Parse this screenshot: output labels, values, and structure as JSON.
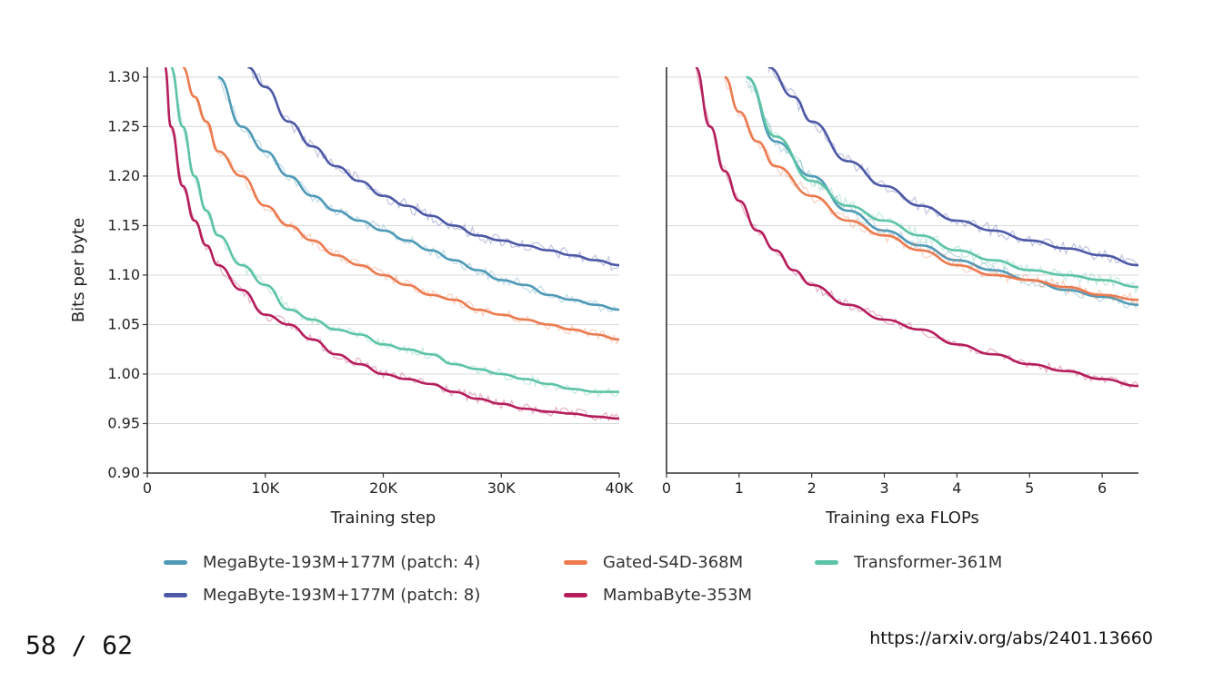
{
  "page": {
    "number": "58 / 62",
    "url": "https://arxiv.org/abs/2401.13660"
  },
  "colors": {
    "megabyte_p4": "#4f9ab7",
    "megabyte_p8": "#4d58a6",
    "gated_s4d": "#ec7a4f",
    "transformer": "#5dc3a6",
    "mambabyte": "#b51d5c"
  },
  "legend": [
    {
      "label": "MegaByte-193M+177M (patch: 4)",
      "color": "#4f9ab7"
    },
    {
      "label": "MegaByte-193M+177M (patch: 8)",
      "color": "#4d58a6"
    },
    {
      "label": "Gated-S4D-368M",
      "color": "#ec7a4f"
    },
    {
      "label": "MambaByte-353M",
      "color": "#b51d5c"
    },
    {
      "label": "Transformer-361M",
      "color": "#5dc3a6"
    }
  ],
  "chart_data": [
    {
      "type": "line",
      "xlabel": "Training step",
      "ylabel": "Bits per byte",
      "xlim": [
        0,
        40000
      ],
      "ylim": [
        0.9,
        1.31
      ],
      "x_ticks": [
        0,
        10000,
        20000,
        30000,
        40000
      ],
      "x_tick_labels": [
        "0",
        "10K",
        "20K",
        "30K",
        "40K"
      ],
      "y_ticks": [
        0.9,
        0.95,
        1.0,
        1.05,
        1.1,
        1.15,
        1.2,
        1.25,
        1.3
      ],
      "y_tick_labels": [
        "0.90",
        "0.95",
        "1.00",
        "1.05",
        "1.10",
        "1.15",
        "1.20",
        "1.25",
        "1.30"
      ],
      "grid": "horizontal",
      "series": [
        {
          "name": "MegaByte-193M+177M (patch: 4)",
          "color": "#4f9ab7",
          "x": [
            6000,
            8000,
            10000,
            12000,
            14000,
            16000,
            18000,
            20000,
            22000,
            24000,
            26000,
            28000,
            30000,
            32000,
            34000,
            36000,
            38000,
            40000
          ],
          "y": [
            1.3,
            1.25,
            1.225,
            1.2,
            1.18,
            1.165,
            1.155,
            1.145,
            1.135,
            1.125,
            1.115,
            1.105,
            1.095,
            1.09,
            1.08,
            1.075,
            1.07,
            1.065
          ]
        },
        {
          "name": "MegaByte-193M+177M (patch: 8)",
          "color": "#4d58a6",
          "x": [
            8500,
            10000,
            12000,
            14000,
            16000,
            18000,
            20000,
            22000,
            24000,
            26000,
            28000,
            30000,
            32000,
            34000,
            36000,
            38000,
            40000
          ],
          "y": [
            1.31,
            1.29,
            1.255,
            1.23,
            1.21,
            1.195,
            1.18,
            1.17,
            1.16,
            1.15,
            1.14,
            1.135,
            1.13,
            1.125,
            1.12,
            1.115,
            1.11
          ]
        },
        {
          "name": "Gated-S4D-368M",
          "color": "#ec7a4f",
          "x": [
            3000,
            4000,
            5000,
            6000,
            8000,
            10000,
            12000,
            14000,
            16000,
            18000,
            20000,
            22000,
            24000,
            26000,
            28000,
            30000,
            32000,
            34000,
            36000,
            38000,
            40000
          ],
          "y": [
            1.31,
            1.28,
            1.255,
            1.225,
            1.2,
            1.17,
            1.15,
            1.135,
            1.12,
            1.11,
            1.1,
            1.09,
            1.08,
            1.075,
            1.065,
            1.06,
            1.055,
            1.05,
            1.045,
            1.04,
            1.035
          ]
        },
        {
          "name": "Transformer-361M",
          "color": "#5dc3a6",
          "x": [
            2000,
            3000,
            4000,
            5000,
            6000,
            8000,
            10000,
            12000,
            14000,
            16000,
            18000,
            20000,
            22000,
            24000,
            26000,
            28000,
            30000,
            32000,
            34000,
            36000,
            38000,
            40000
          ],
          "y": [
            1.31,
            1.25,
            1.2,
            1.165,
            1.14,
            1.11,
            1.09,
            1.065,
            1.055,
            1.045,
            1.04,
            1.03,
            1.025,
            1.02,
            1.01,
            1.005,
            1.0,
            0.995,
            0.99,
            0.985,
            0.982,
            0.982
          ]
        },
        {
          "name": "MambaByte-353M",
          "color": "#b51d5c",
          "x": [
            1500,
            2000,
            3000,
            4000,
            5000,
            6000,
            8000,
            10000,
            12000,
            14000,
            16000,
            18000,
            20000,
            22000,
            24000,
            26000,
            28000,
            30000,
            32000,
            34000,
            36000,
            38000,
            40000
          ],
          "y": [
            1.31,
            1.25,
            1.19,
            1.155,
            1.13,
            1.11,
            1.085,
            1.06,
            1.05,
            1.035,
            1.02,
            1.01,
            1.0,
            0.995,
            0.99,
            0.982,
            0.975,
            0.97,
            0.965,
            0.962,
            0.96,
            0.957,
            0.955
          ]
        }
      ]
    },
    {
      "type": "line",
      "xlabel": "Training exa FLOPs",
      "ylabel": "",
      "xlim": [
        0,
        6.5
      ],
      "ylim": [
        0.9,
        1.31
      ],
      "x_ticks": [
        0,
        1,
        2,
        3,
        4,
        5,
        6
      ],
      "x_tick_labels": [
        "0",
        "1",
        "2",
        "3",
        "4",
        "5",
        "6"
      ],
      "grid": "horizontal",
      "series": [
        {
          "name": "MegaByte-193M+177M (patch: 4)",
          "color": "#4f9ab7",
          "x": [
            1.1,
            1.5,
            2.0,
            2.5,
            3.0,
            3.5,
            4.0,
            4.5,
            5.0,
            5.5,
            6.0,
            6.5
          ],
          "y": [
            1.3,
            1.235,
            1.2,
            1.165,
            1.145,
            1.13,
            1.115,
            1.105,
            1.095,
            1.085,
            1.078,
            1.07
          ]
        },
        {
          "name": "MegaByte-193M+177M (patch: 8)",
          "color": "#4d58a6",
          "x": [
            1.4,
            1.75,
            2.0,
            2.5,
            3.0,
            3.5,
            4.0,
            4.5,
            5.0,
            5.5,
            6.0,
            6.5
          ],
          "y": [
            1.31,
            1.28,
            1.255,
            1.215,
            1.19,
            1.17,
            1.155,
            1.145,
            1.135,
            1.127,
            1.12,
            1.11
          ]
        },
        {
          "name": "Gated-S4D-368M",
          "color": "#ec7a4f",
          "x": [
            0.8,
            1.0,
            1.25,
            1.5,
            2.0,
            2.5,
            3.0,
            3.5,
            4.0,
            4.5,
            5.0,
            5.5,
            6.0,
            6.5
          ],
          "y": [
            1.3,
            1.265,
            1.235,
            1.21,
            1.18,
            1.155,
            1.14,
            1.125,
            1.11,
            1.1,
            1.095,
            1.088,
            1.08,
            1.075
          ]
        },
        {
          "name": "Transformer-361M",
          "color": "#5dc3a6",
          "x": [
            1.1,
            1.5,
            2.0,
            2.5,
            3.0,
            3.5,
            4.0,
            4.5,
            5.0,
            5.5,
            6.0,
            6.5
          ],
          "y": [
            1.3,
            1.24,
            1.195,
            1.17,
            1.155,
            1.14,
            1.125,
            1.115,
            1.105,
            1.1,
            1.095,
            1.088
          ]
        },
        {
          "name": "MambaByte-353M",
          "color": "#b51d5c",
          "x": [
            0.4,
            0.6,
            0.8,
            1.0,
            1.25,
            1.5,
            1.75,
            2.0,
            2.5,
            3.0,
            3.5,
            4.0,
            4.5,
            5.0,
            5.5,
            6.0,
            6.5
          ],
          "y": [
            1.31,
            1.25,
            1.205,
            1.175,
            1.145,
            1.125,
            1.105,
            1.09,
            1.07,
            1.055,
            1.045,
            1.03,
            1.02,
            1.01,
            1.003,
            0.995,
            0.988
          ]
        }
      ]
    }
  ]
}
